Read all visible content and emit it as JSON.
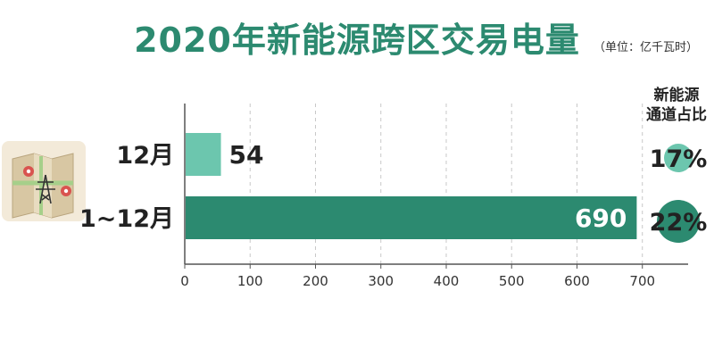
{
  "title": "2020年新能源跨区交易电量",
  "unit": "（单位：亿千瓦时）",
  "share_header": [
    "新能源",
    "通道占比"
  ],
  "colors": {
    "title": "#2c8a70",
    "bar_light": "#6cc6ae",
    "bar_dark": "#2c8a70",
    "circle_light": "#6cc6ae",
    "circle_dark": "#2c8a70",
    "grid": "#c8c8c8",
    "axis": "#555555"
  },
  "icon": "map-with-transmission-tower-icon",
  "chart_data": {
    "type": "bar",
    "orientation": "horizontal",
    "categories": [
      "12月",
      "1~12月"
    ],
    "values": [
      54,
      690
    ],
    "value_labels": [
      "54",
      "690"
    ],
    "shares": [
      "17%",
      "22%"
    ],
    "xlim": [
      0,
      770
    ],
    "xticks": [
      0,
      100,
      200,
      300,
      400,
      500,
      600,
      700
    ],
    "grid": "vertical dashed"
  }
}
